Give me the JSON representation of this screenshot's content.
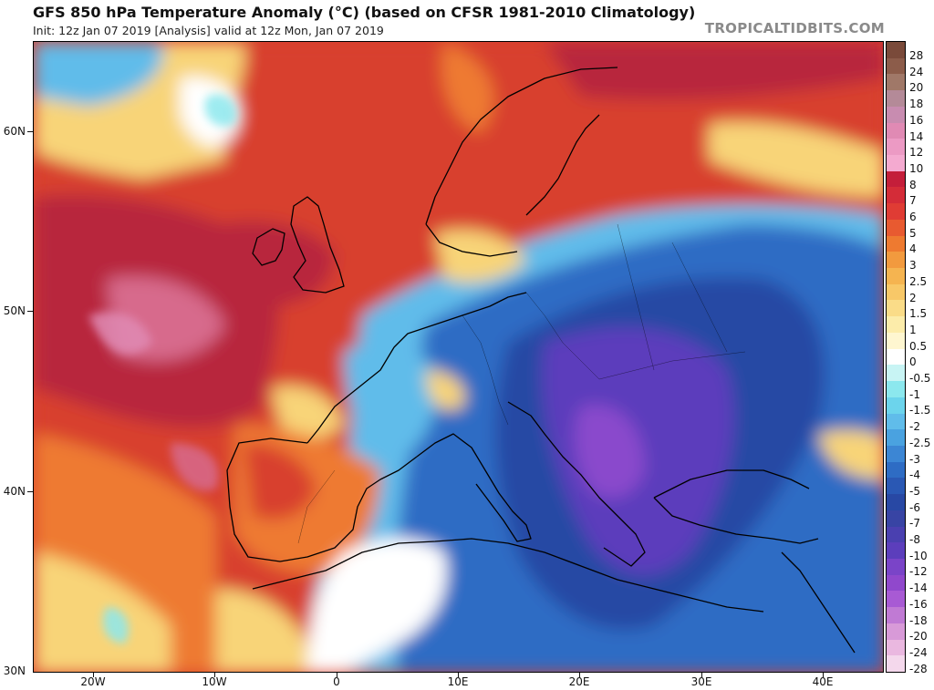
{
  "header": {
    "title": "GFS 850 hPa Temperature Anomaly (°C) (based on CFSR 1981-2010 Climatology)",
    "subtitle": "Init: 12z Jan 07 2019  [Analysis]   valid at 12z Mon, Jan 07 2019",
    "brand": "TROPICALTIDBITS.COM"
  },
  "axes": {
    "lat_labels": [
      "60N",
      "50N",
      "40N",
      "30N"
    ],
    "lon_labels": [
      "20W",
      "10W",
      "0",
      "10E",
      "20E",
      "30E",
      "40E"
    ]
  },
  "colorbar": {
    "labels": [
      "28",
      "24",
      "20",
      "18",
      "16",
      "14",
      "12",
      "10",
      "8",
      "7",
      "6",
      "5",
      "4",
      "3",
      "2.5",
      "2",
      "1.5",
      "1",
      "0.5",
      "0",
      "-0.5",
      "-1",
      "-1.5",
      "-2",
      "-2.5",
      "-3",
      "-4",
      "-5",
      "-6",
      "-7",
      "-8",
      "-10",
      "-12",
      "-14",
      "-16",
      "-18",
      "-20",
      "-24",
      "-28"
    ],
    "colors": [
      "#7a4a3a",
      "#8c5c4a",
      "#a07868",
      "#b48a98",
      "#c88cb0",
      "#e08ab4",
      "#ec9ac4",
      "#f4aad0",
      "#c41e3a",
      "#d42c38",
      "#e03c34",
      "#e85a30",
      "#ee7a30",
      "#f29a3e",
      "#f5b450",
      "#f8c868",
      "#fadc88",
      "#fcecaa",
      "#fef6d0",
      "#ffffff",
      "#c8f4f4",
      "#8ce8ee",
      "#6cd4ec",
      "#60bcea",
      "#4aa2e0",
      "#3c86d4",
      "#2e6cc4",
      "#2a58b4",
      "#2848a4",
      "#3844a4",
      "#4a40b0",
      "#5c3ebc",
      "#7a44c8",
      "#9048cc",
      "#a85ad4",
      "#c07ad4",
      "#d89ad8",
      "#eab8e0",
      "#f4d8ec"
    ]
  },
  "map": {
    "palette": {
      "deep_red": "#b8283c",
      "red": "#d8402e",
      "orange": "#ee7a30",
      "yellow": "#f8d478",
      "white": "#ffffff",
      "cyan": "#8ce8ee",
      "light_blue": "#60bcea",
      "blue": "#2e6cc4",
      "navy": "#2848a4",
      "purple": "#5c3ebc",
      "violet": "#8a48cc",
      "pink": "#d76a8c",
      "coastline": "#000000"
    }
  }
}
